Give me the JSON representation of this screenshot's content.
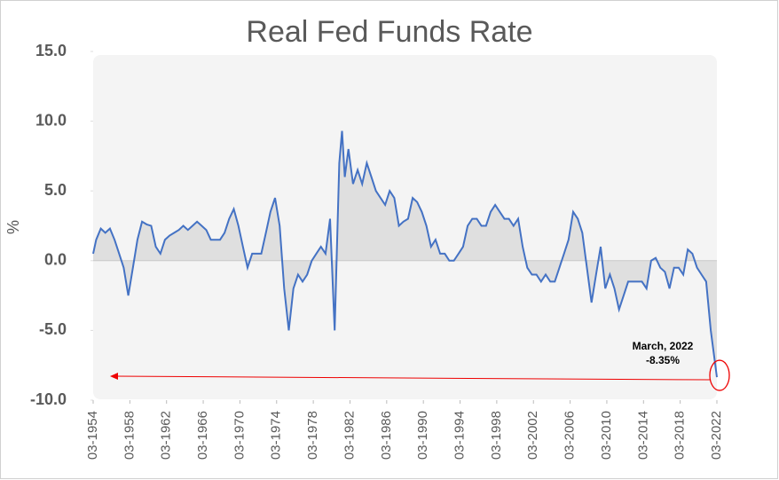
{
  "chart_data": {
    "type": "line",
    "title": "Real Fed Funds Rate",
    "y_label": "%",
    "color": "#4472c4",
    "area_color": "#d9d9d9",
    "x": [
      1954.17,
      1954.5,
      1955,
      1955.5,
      1956,
      1956.5,
      1957,
      1957.5,
      1958,
      1958.5,
      1959,
      1959.5,
      1960,
      1960.5,
      1961,
      1961.5,
      1962,
      1962.5,
      1963,
      1963.5,
      1964,
      1964.5,
      1965,
      1965.5,
      1966,
      1966.5,
      1967,
      1967.5,
      1968,
      1968.5,
      1969,
      1969.5,
      1970,
      1970.5,
      1971,
      1971.5,
      1972,
      1972.5,
      1973,
      1973.5,
      1974,
      1974.5,
      1975,
      1975.5,
      1976,
      1976.5,
      1977,
      1977.5,
      1978,
      1978.5,
      1979,
      1979.5,
      1980,
      1980.5,
      1981,
      1981.3,
      1981.6,
      1982,
      1982.5,
      1983,
      1983.5,
      1984,
      1984.5,
      1985,
      1985.5,
      1986,
      1986.5,
      1987,
      1987.5,
      1988,
      1988.5,
      1989,
      1989.5,
      1990,
      1990.5,
      1991,
      1991.5,
      1992,
      1992.5,
      1993,
      1993.5,
      1994,
      1994.5,
      1995,
      1995.5,
      1996,
      1996.5,
      1997,
      1997.5,
      1998,
      1998.5,
      1999,
      1999.5,
      2000,
      2000.5,
      2001,
      2001.5,
      2002,
      2002.5,
      2003,
      2003.5,
      2004,
      2004.5,
      2005,
      2005.5,
      2006,
      2006.5,
      2007,
      2007.5,
      2008,
      2008.5,
      2009,
      2009.5,
      2010,
      2010.5,
      2011,
      2011.5,
      2012,
      2012.5,
      2013,
      2013.5,
      2014,
      2014.5,
      2015,
      2015.5,
      2016,
      2016.5,
      2017,
      2017.5,
      2018,
      2018.5,
      2019,
      2019.5,
      2020,
      2020.5,
      2021,
      2021.5,
      2022.17
    ],
    "values": [
      0.5,
      1.5,
      2.3,
      2.0,
      2.3,
      1.5,
      0.5,
      -0.5,
      -2.5,
      -0.5,
      1.5,
      2.8,
      2.6,
      2.5,
      1.0,
      0.5,
      1.5,
      1.8,
      2.0,
      2.2,
      2.5,
      2.2,
      2.5,
      2.8,
      2.5,
      2.2,
      1.5,
      1.5,
      1.5,
      2.0,
      3.0,
      3.7,
      2.5,
      1.0,
      -0.5,
      0.5,
      0.5,
      0.5,
      2.0,
      3.5,
      4.5,
      2.5,
      -2.0,
      -5.0,
      -2.0,
      -1.0,
      -1.5,
      -1.0,
      0.0,
      0.5,
      1.0,
      0.5,
      3.0,
      -5.0,
      7.0,
      9.3,
      6.0,
      8.0,
      5.5,
      6.5,
      5.5,
      7.0,
      6.0,
      5.0,
      4.5,
      4.0,
      5.0,
      4.5,
      2.5,
      2.8,
      3.0,
      4.5,
      4.2,
      3.5,
      2.5,
      1.0,
      1.5,
      0.5,
      0.5,
      0.0,
      0.0,
      0.5,
      1.0,
      2.5,
      3.0,
      3.0,
      2.5,
      2.5,
      3.5,
      4.0,
      3.5,
      3.0,
      3.0,
      2.5,
      3.0,
      1.0,
      -0.5,
      -1.0,
      -1.0,
      -1.5,
      -1.0,
      -1.5,
      -1.5,
      -0.5,
      0.5,
      1.5,
      3.5,
      3.0,
      2.0,
      -0.5,
      -3.0,
      -1.0,
      1.0,
      -2.0,
      -1.0,
      -2.0,
      -3.5,
      -2.5,
      -1.5,
      -1.5,
      -1.5,
      -1.5,
      -2.0,
      0.0,
      0.2,
      -0.5,
      -0.8,
      -2.0,
      -0.5,
      -0.5,
      -1.0,
      0.8,
      0.5,
      -0.5,
      -1.0,
      -1.5,
      -5.0,
      -8.35
    ],
    "xlim": [
      1954.17,
      2022.17
    ],
    "xticks": [
      {
        "value": 1954.17,
        "label": "03-1954"
      },
      {
        "value": 1958.17,
        "label": "03-1958"
      },
      {
        "value": 1962.17,
        "label": "03-1962"
      },
      {
        "value": 1966.17,
        "label": "03-1966"
      },
      {
        "value": 1970.17,
        "label": "03-1970"
      },
      {
        "value": 1974.17,
        "label": "03-1974"
      },
      {
        "value": 1978.17,
        "label": "03-1978"
      },
      {
        "value": 1982.17,
        "label": "03-1982"
      },
      {
        "value": 1986.17,
        "label": "03-1986"
      },
      {
        "value": 1990.17,
        "label": "03-1990"
      },
      {
        "value": 1994.17,
        "label": "03-1994"
      },
      {
        "value": 1998.17,
        "label": "03-1998"
      },
      {
        "value": 2002.17,
        "label": "03-2002"
      },
      {
        "value": 2006.17,
        "label": "03-2006"
      },
      {
        "value": 2010.17,
        "label": "03-2010"
      },
      {
        "value": 2014.17,
        "label": "03-2014"
      },
      {
        "value": 2018.17,
        "label": "03-2018"
      },
      {
        "value": 2022.17,
        "label": "03-2022"
      }
    ],
    "ylim": [
      -10,
      15
    ],
    "yticks": [
      {
        "value": -10,
        "label": "-10.0"
      },
      {
        "value": -5,
        "label": "-5.0"
      },
      {
        "value": 0,
        "label": "0.0"
      },
      {
        "value": 5,
        "label": "5.0"
      },
      {
        "value": 10,
        "label": "10.0"
      },
      {
        "value": 15,
        "label": "15.0"
      }
    ],
    "annotation": {
      "date": "March, 2022",
      "label": "-8.35%"
    }
  }
}
